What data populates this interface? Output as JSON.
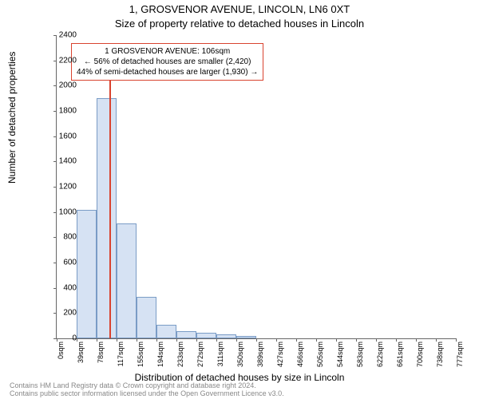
{
  "title1": "1, GROSVENOR AVENUE, LINCOLN, LN6 0XT",
  "title2": "Size of property relative to detached houses in Lincoln",
  "ylabel": "Number of detached properties",
  "xlabel": "Distribution of detached houses by size in Lincoln",
  "chart": {
    "type": "histogram",
    "ylim": [
      0,
      2400
    ],
    "ytick_step": 200,
    "xlim_sqm": [
      0,
      800
    ],
    "xtick_labels": [
      "0sqm",
      "39sqm",
      "78sqm",
      "117sqm",
      "155sqm",
      "194sqm",
      "233sqm",
      "272sqm",
      "311sqm",
      "350sqm",
      "389sqm",
      "427sqm",
      "466sqm",
      "505sqm",
      "544sqm",
      "583sqm",
      "622sqm",
      "661sqm",
      "700sqm",
      "738sqm",
      "777sqm"
    ],
    "bars": [
      {
        "x_bin": 0,
        "value": 0
      },
      {
        "x_bin": 1,
        "value": 1020
      },
      {
        "x_bin": 2,
        "value": 1900
      },
      {
        "x_bin": 3,
        "value": 910
      },
      {
        "x_bin": 4,
        "value": 330
      },
      {
        "x_bin": 5,
        "value": 105
      },
      {
        "x_bin": 6,
        "value": 60
      },
      {
        "x_bin": 7,
        "value": 45
      },
      {
        "x_bin": 8,
        "value": 30
      },
      {
        "x_bin": 9,
        "value": 20
      },
      {
        "x_bin": 10,
        "value": 0
      },
      {
        "x_bin": 11,
        "value": 0
      },
      {
        "x_bin": 12,
        "value": 0
      },
      {
        "x_bin": 13,
        "value": 0
      },
      {
        "x_bin": 14,
        "value": 0
      },
      {
        "x_bin": 15,
        "value": 0
      },
      {
        "x_bin": 16,
        "value": 0
      },
      {
        "x_bin": 17,
        "value": 0
      },
      {
        "x_bin": 18,
        "value": 0
      },
      {
        "x_bin": 19,
        "value": 0
      }
    ],
    "bar_fill": "#d6e2f3",
    "bar_stroke": "#7a9cc6",
    "marker_sqm": 106,
    "marker_color": "#d9432f",
    "background_color": "#ffffff",
    "axis_color": "#666666"
  },
  "callout": {
    "line1": "1 GROSVENOR AVENUE: 106sqm",
    "line2": "← 56% of detached houses are smaller (2,420)",
    "line3": "44% of semi-detached houses are larger (1,930) →",
    "border_color": "#d9432f"
  },
  "footer": {
    "line1": "Contains HM Land Registry data © Crown copyright and database right 2024.",
    "line2": "Contains public sector information licensed under the Open Government Licence v3.0."
  }
}
